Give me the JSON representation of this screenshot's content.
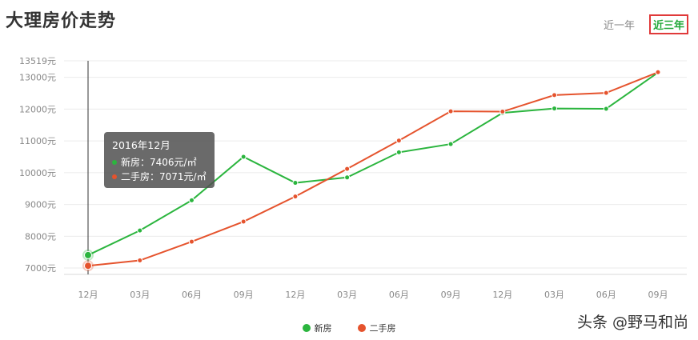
{
  "header": {
    "title": "大理房价走势"
  },
  "range_tabs": [
    {
      "label": "近一年",
      "active": false
    },
    {
      "label": "近三年",
      "active": true
    }
  ],
  "tooltip": {
    "title": "2016年12月",
    "rows": [
      {
        "label": "新房：7406元/㎡"
      },
      {
        "label": "二手房：7071元/㎡"
      }
    ]
  },
  "watermark": "头条 @野马和尚",
  "colors": {
    "new_home": "#2bb53e",
    "second_hand": "#e5532d",
    "active_tab": "#23a93a",
    "highlight_border": "#e03a3a"
  },
  "chart_data": {
    "type": "line",
    "title": "大理房价走势",
    "xlabel": "",
    "ylabel": "",
    "categories": [
      "12月",
      "03月",
      "06月",
      "09月",
      "12月",
      "03月",
      "06月",
      "09月",
      "12月",
      "03月",
      "06月",
      "09月"
    ],
    "y_ticks": [
      "7000元",
      "8000元",
      "9000元",
      "10000元",
      "11000元",
      "12000元",
      "13000元",
      "13519元"
    ],
    "ylim": [
      6800,
      13519
    ],
    "grid": true,
    "legend_position": "bottom",
    "series": [
      {
        "name": "新房",
        "color": "#2bb53e",
        "values": [
          7406,
          8180,
          9130,
          10500,
          9680,
          9850,
          10640,
          10900,
          11880,
          12020,
          12010,
          13150
        ]
      },
      {
        "name": "二手房",
        "color": "#e5532d",
        "values": [
          7071,
          7240,
          7830,
          8460,
          9250,
          10120,
          11010,
          11930,
          11920,
          12440,
          12510,
          13160
        ]
      }
    ]
  }
}
